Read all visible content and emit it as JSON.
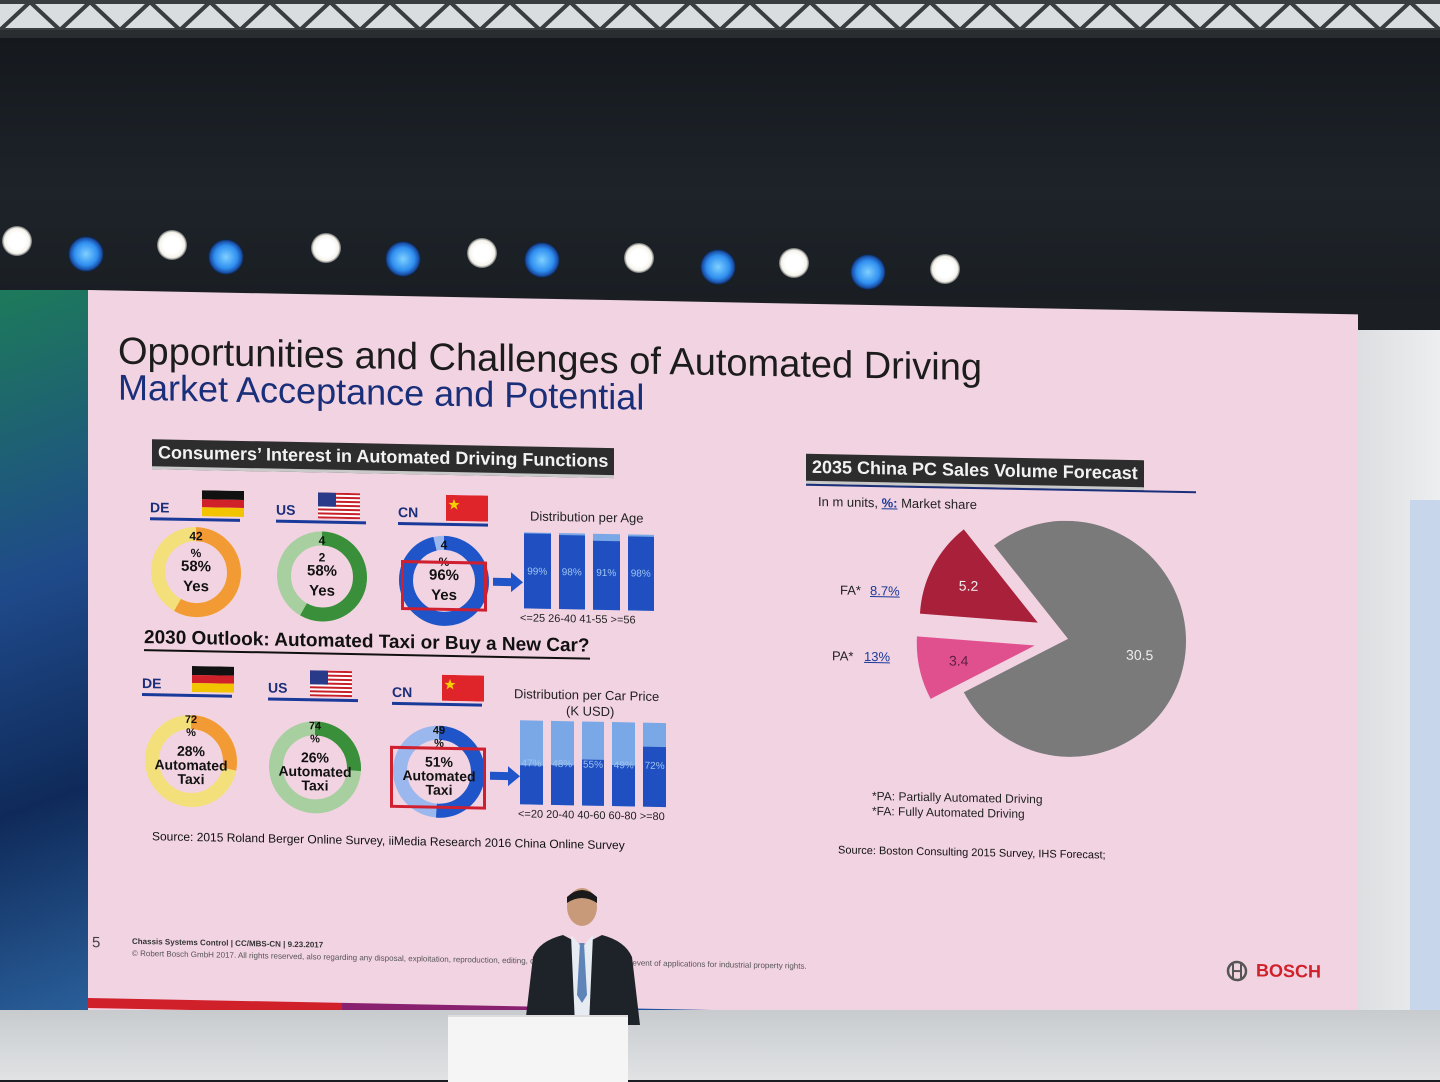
{
  "slide": {
    "title": "Opportunities and Challenges of Automated Driving",
    "subtitle": "Market Acceptance and Potential",
    "section1": {
      "header": "Consumers’ Interest in Automated Driving Functions",
      "countries": [
        {
          "code": "DE",
          "top": "42\n%",
          "main": "58%",
          "sub": "Yes",
          "yes_pct": 58
        },
        {
          "code": "US",
          "top": "4\n2",
          "main": "58%",
          "sub": "Yes",
          "yes_pct": 58
        },
        {
          "code": "CN",
          "top": "4\n%",
          "main": "96%",
          "sub": "Yes",
          "yes_pct": 96
        }
      ],
      "dist_title": "Distribution per Age",
      "dist_bars": [
        {
          "label": "<=25",
          "value": "99%",
          "fill": 0.99
        },
        {
          "label": "26-40",
          "value": "98%",
          "fill": 0.98
        },
        {
          "label": "41-55",
          "value": "91%",
          "fill": 0.91
        },
        {
          "label": ">=56",
          "value": "98%",
          "fill": 0.98
        }
      ],
      "dist_axis": "<=25  26-40 41-55 >=56"
    },
    "section2": {
      "header": "2030 Outlook: Automated Taxi or Buy a New Car?",
      "countries": [
        {
          "code": "DE",
          "top": "72\n%",
          "main": "28%",
          "sub1": "Automated",
          "sub2": "Taxi",
          "taxi_pct": 28
        },
        {
          "code": "US",
          "top": "74\n%",
          "main": "26%",
          "sub1": "Automated",
          "sub2": "Taxi",
          "taxi_pct": 26
        },
        {
          "code": "CN",
          "top": "49\n%",
          "main": "51%",
          "sub1": "Automated",
          "sub2": "Taxi",
          "taxi_pct": 51
        }
      ],
      "dist_title": "Distribution per Car Price",
      "dist_unit": "(K USD)",
      "dist_bars": [
        {
          "label": "<=20",
          "value": "47%",
          "fill": 0.47
        },
        {
          "label": "20-40",
          "value": "48%",
          "fill": 0.48
        },
        {
          "label": "40-60",
          "value": "55%",
          "fill": 0.55
        },
        {
          "label": "60-80",
          "value": "49%",
          "fill": 0.49
        },
        {
          "label": ">=80",
          "value": "72%",
          "fill": 0.72
        }
      ],
      "dist_axis": "<=20  20-40 40-60 60-80 >=80"
    },
    "source_left": "Source: 2015 Roland Berger Online Survey, iiMedia Research 2016 China Online Survey",
    "forecast": {
      "header": "2035 China PC Sales Volume Forecast",
      "units_prefix": "In m units, ",
      "units_link": "%:",
      "units_suffix": " Market share",
      "fa_label": "FA*",
      "fa_share": "8.7%",
      "pa_label": "PA*",
      "pa_share": "13%",
      "note1": "*PA: Partially Automated Driving",
      "note2": "*FA: Fully Automated Driving",
      "source": "Source: Boston Consulting 2015 Survey, IHS Forecast;"
    },
    "footer": {
      "page": "5",
      "line1": "Chassis Systems Control | CC/MBS-CN | 9.23.2017",
      "line2": "© Robert Bosch GmbH 2017. All rights reserved, also regarding any disposal, exploitation, reproduction, editing, distribution, as well as in the event of applications for industrial property rights.",
      "brand": "BOSCH"
    }
  },
  "chart_data": {
    "type": "pie",
    "title": "2035 China PC Sales Volume Forecast",
    "categories": [
      "FA*",
      "PA*",
      ""
    ],
    "values": [
      3.4,
      5.2,
      30.5
    ],
    "colors": [
      "#e0508f",
      "#a8203a",
      "#7a7a7a"
    ]
  },
  "colors": {
    "de_ring": "#f29a34",
    "us_ring": "#3a8f3a",
    "cn_ring": "#1f55c8",
    "ring_light": "#f3e07a",
    "bar_blue": "#1f4fc0",
    "bar_light": "#7aa8e6"
  }
}
